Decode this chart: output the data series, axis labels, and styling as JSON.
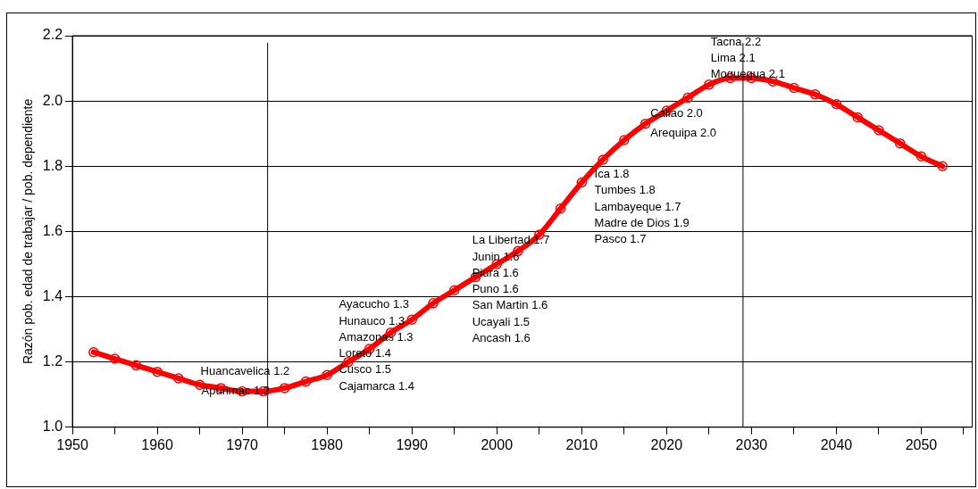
{
  "chart_data": {
    "type": "line",
    "ylabel": "Razón pob. edad de trabajar / pob. dependiente",
    "x": [
      1952.5,
      1955,
      1957.5,
      1960,
      1962.5,
      1965,
      1967.5,
      1970,
      1972.5,
      1975,
      1977.5,
      1980,
      1982.5,
      1985,
      1987.5,
      1990,
      1992.5,
      1995,
      1997.5,
      2000,
      2002.5,
      2005,
      2007.5,
      2010,
      2012.5,
      2015,
      2017.5,
      2020,
      2022.5,
      2025,
      2027.5,
      2030,
      2032.5,
      2035,
      2037.5,
      2040,
      2042.5,
      2045,
      2047.5,
      2050,
      2052.5
    ],
    "series": [
      {
        "color": "#ff0000",
        "values": [
          1.23,
          1.21,
          1.19,
          1.17,
          1.15,
          1.13,
          1.12,
          1.11,
          1.11,
          1.12,
          1.14,
          1.16,
          1.2,
          1.24,
          1.29,
          1.33,
          1.38,
          1.42,
          1.46,
          1.5,
          1.54,
          1.59,
          1.67,
          1.75,
          1.82,
          1.88,
          1.93,
          1.97,
          2.01,
          2.05,
          2.07,
          2.07,
          2.06,
          2.04,
          2.02,
          1.99,
          1.95,
          1.91,
          1.87,
          1.83,
          1.8
        ]
      }
    ],
    "xlim": [
      1950,
      2056
    ],
    "xticks": [
      1950,
      {
        "value": 1955,
        "label": null
      },
      1960,
      {
        "value": 1965,
        "label": null
      },
      1970,
      {
        "value": 1975,
        "label": null
      },
      1980,
      {
        "value": 1985,
        "label": null
      },
      1990,
      {
        "value": 1995,
        "label": null
      },
      2000,
      {
        "value": 2005,
        "label": null
      },
      2010,
      {
        "value": 2015,
        "label": null
      },
      2020,
      {
        "value": 2025,
        "label": null
      },
      2030,
      {
        "value": 2035,
        "label": null
      },
      2040,
      {
        "value": 2045,
        "label": null
      },
      2050,
      {
        "value": 2055,
        "label": null
      }
    ],
    "ylim": [
      1.0,
      2.2
    ],
    "yticks": [
      {
        "value": 1,
        "label": "1.0"
      },
      1.2,
      1.4,
      1.6,
      1.8,
      {
        "value": 2,
        "label": "2.0"
      },
      2.2
    ],
    "grid": "y",
    "legend": false,
    "marker": "circle",
    "line_style": "solid",
    "ref_lines": [
      {
        "axis": "x",
        "value": 1973,
        "color": "#000000"
      },
      {
        "axis": "x",
        "value": 2029,
        "color": "#000000"
      }
    ],
    "annotations": [
      "Huancavelica 1.2",
      "Apurimac 1.2",
      "Ayacucho 1.3",
      "Hunauco 1.3",
      "Amazonas 1.3",
      "Loreto 1.4",
      "Cusco 1.5",
      "Cajamarca 1.4",
      "La Libertad 1.7",
      "Junin 1.6",
      "Piura 1.6",
      "Puno 1.6",
      "San Martin 1.6",
      "Ucayali 1.5",
      "Ancash 1.6",
      "Ica 1.8",
      "Tumbes 1.8",
      "Lambayeque 1.7",
      "Madre de Dios 1.9",
      "Pasco 1.7",
      "Callao 2.0",
      "Arequipa 2.0",
      "Tacna 2.2",
      "Lima 2.1",
      "Moquegua 2.1"
    ]
  }
}
